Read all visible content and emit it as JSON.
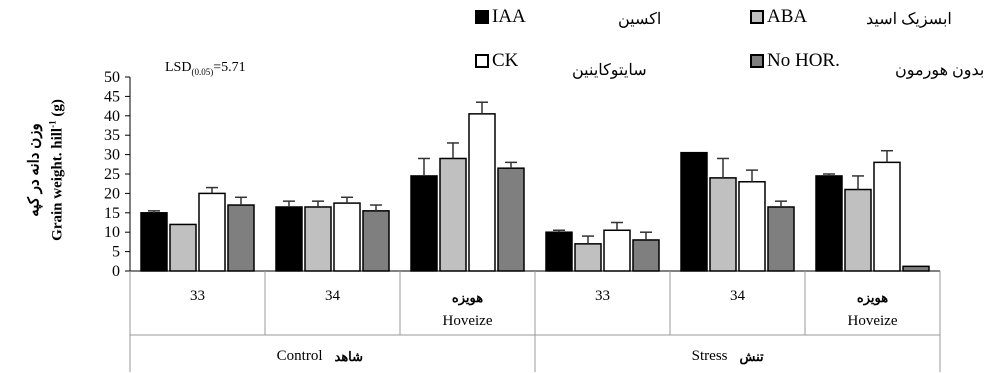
{
  "chart_data": {
    "type": "bar",
    "ylabel_fa": "وزن دانه در کپه",
    "ylabel_en": "Grain weight. hill",
    "ylabel_sup": "-1",
    "ylabel_unit": " (g)",
    "ylim": [
      0,
      50
    ],
    "yticks": [
      "0",
      "5",
      "10",
      "15",
      "20",
      "25",
      "30",
      "35",
      "40",
      "45",
      "50"
    ],
    "lsd_prefix": "LSD",
    "lsd_sub": "(0.05)",
    "lsd_value": "=5.71",
    "categories": [
      {
        "label": "33",
        "label_fa": ""
      },
      {
        "label": "34",
        "label_fa": ""
      },
      {
        "label": "Hoveize",
        "label_fa": "هویزه"
      },
      {
        "label": "33",
        "label_fa": ""
      },
      {
        "label": "34",
        "label_fa": ""
      },
      {
        "label": "Hoveize",
        "label_fa": "هویزه"
      }
    ],
    "groups": [
      {
        "label": "Control",
        "label_fa": "شاهد",
        "span": [
          0,
          3
        ]
      },
      {
        "label": "Stress",
        "label_fa": "تنش",
        "span": [
          3,
          6
        ]
      }
    ],
    "series": [
      {
        "name": "IAA",
        "name_fa": "اکسین",
        "color": "#000000",
        "values": [
          15,
          16.5,
          24.5,
          10,
          30.5,
          24.5
        ],
        "errors": [
          0.5,
          1.5,
          4.5,
          0.5,
          0,
          0.5
        ]
      },
      {
        "name": "ABA",
        "name_fa": "ابسزیک اسید",
        "color": "#c0c0c0",
        "values": [
          12,
          16.5,
          29,
          7,
          24,
          21
        ],
        "errors": [
          0,
          1.5,
          4,
          2,
          5,
          3.5
        ]
      },
      {
        "name": "CK",
        "name_fa": "سایتوکاینین",
        "color": "#ffffff",
        "values": [
          20,
          17.5,
          40.5,
          10.5,
          23,
          28
        ],
        "errors": [
          1.5,
          1.5,
          3,
          2,
          3,
          3
        ]
      },
      {
        "name": "No HOR.",
        "name_fa": "بدون هورمون",
        "color": "#7f7f7f",
        "values": [
          17,
          15.5,
          26.5,
          8,
          16.5,
          1.2
        ],
        "errors": [
          2,
          1.5,
          1.5,
          2,
          1.5,
          0
        ]
      }
    ]
  }
}
